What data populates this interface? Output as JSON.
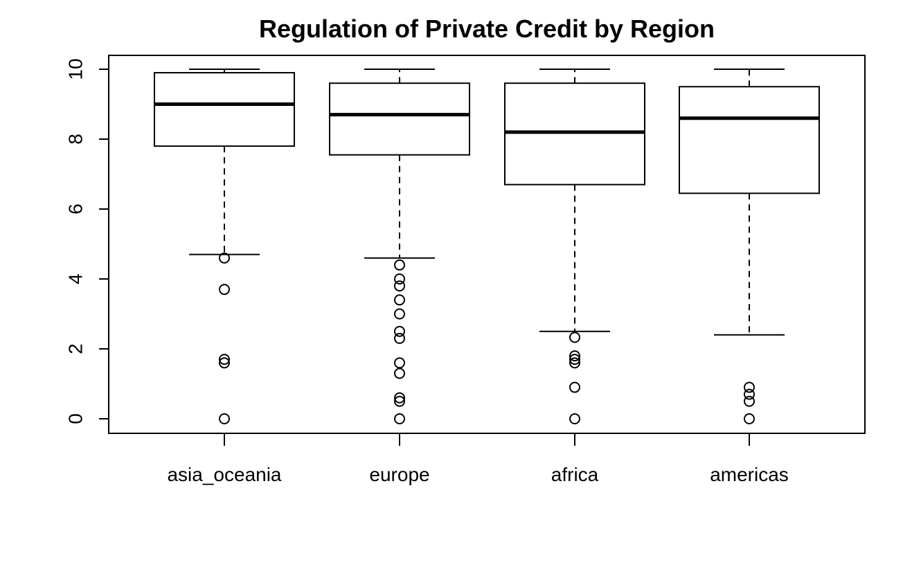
{
  "chart_data": {
    "type": "boxplot",
    "title": "Regulation of Private Credit by Region",
    "xlabel": "",
    "ylabel": "",
    "ylim": [
      -0.4,
      10.4
    ],
    "yticks": [
      0,
      2,
      4,
      6,
      8,
      10
    ],
    "grid": false,
    "categories": [
      "asia_oceania",
      "europe",
      "africa",
      "americas"
    ],
    "boxes": [
      {
        "category": "asia_oceania",
        "whisker_low": 4.7,
        "q1": 7.8,
        "median": 9.0,
        "q3": 9.9,
        "whisker_high": 10.0,
        "outliers": [
          4.6,
          3.7,
          1.7,
          1.6,
          0.0
        ]
      },
      {
        "category": "europe",
        "whisker_low": 4.6,
        "q1": 7.55,
        "median": 8.7,
        "q3": 9.6,
        "whisker_high": 10.0,
        "outliers": [
          4.4,
          4.0,
          3.8,
          3.4,
          3.0,
          2.5,
          2.3,
          1.6,
          1.3,
          0.6,
          0.5,
          0.0
        ]
      },
      {
        "category": "africa",
        "whisker_low": 2.5,
        "q1": 6.7,
        "median": 8.2,
        "q3": 9.6,
        "whisker_high": 10.0,
        "outliers": [
          2.33,
          1.8,
          1.7,
          1.6,
          0.9,
          0.0
        ]
      },
      {
        "category": "americas",
        "whisker_low": 2.4,
        "q1": 6.45,
        "median": 8.6,
        "q3": 9.5,
        "whisker_high": 10.0,
        "outliers": [
          0.9,
          0.7,
          0.5,
          0.0
        ]
      }
    ]
  }
}
